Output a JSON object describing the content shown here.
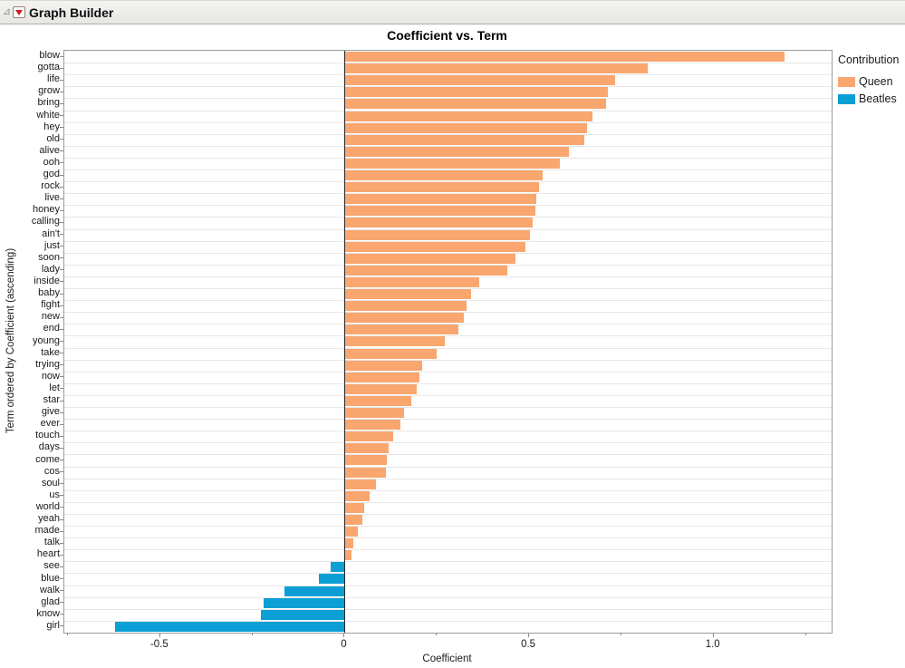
{
  "window": {
    "header_title": "Graph Builder"
  },
  "legend": {
    "title": "Contribution",
    "position": "right",
    "items": [
      {
        "label": "Queen",
        "color": "#F9A66F"
      },
      {
        "label": "Beatles",
        "color": "#0C9FD6"
      }
    ]
  },
  "chart_data": {
    "type": "bar",
    "orientation": "horizontal",
    "title": "Coefficient vs. Term",
    "xlabel": "Coefficient",
    "ylabel": "Term ordered by Coefficient (ascending)",
    "xlim": [
      -0.76,
      1.32
    ],
    "x_major_ticks": [
      -0.5,
      0,
      0.5,
      1.0
    ],
    "x_major_tick_labels": [
      "-0.5",
      "0",
      "0.5",
      "1.0"
    ],
    "x_minor_tick_step": 0.25,
    "grid": "horizontal-row-lines",
    "legend_position": "right",
    "bars": [
      {
        "term": "blow",
        "value": 1.19,
        "group": "Queen"
      },
      {
        "term": "gotta",
        "value": 0.82,
        "group": "Queen"
      },
      {
        "term": "life",
        "value": 0.73,
        "group": "Queen"
      },
      {
        "term": "grow",
        "value": 0.71,
        "group": "Queen"
      },
      {
        "term": "bring",
        "value": 0.705,
        "group": "Queen"
      },
      {
        "term": "white",
        "value": 0.67,
        "group": "Queen"
      },
      {
        "term": "hey",
        "value": 0.655,
        "group": "Queen"
      },
      {
        "term": "old",
        "value": 0.648,
        "group": "Queen"
      },
      {
        "term": "alive",
        "value": 0.605,
        "group": "Queen"
      },
      {
        "term": "ooh",
        "value": 0.58,
        "group": "Queen"
      },
      {
        "term": "god",
        "value": 0.535,
        "group": "Queen"
      },
      {
        "term": "rock",
        "value": 0.524,
        "group": "Queen"
      },
      {
        "term": "live",
        "value": 0.518,
        "group": "Queen"
      },
      {
        "term": "honey",
        "value": 0.514,
        "group": "Queen"
      },
      {
        "term": "calling",
        "value": 0.507,
        "group": "Queen"
      },
      {
        "term": "ain't",
        "value": 0.5,
        "group": "Queen"
      },
      {
        "term": "just",
        "value": 0.488,
        "group": "Queen"
      },
      {
        "term": "soon",
        "value": 0.46,
        "group": "Queen"
      },
      {
        "term": "lady",
        "value": 0.438,
        "group": "Queen"
      },
      {
        "term": "inside",
        "value": 0.362,
        "group": "Queen"
      },
      {
        "term": "baby",
        "value": 0.34,
        "group": "Queen"
      },
      {
        "term": "fight",
        "value": 0.327,
        "group": "Queen"
      },
      {
        "term": "new",
        "value": 0.32,
        "group": "Queen"
      },
      {
        "term": "end",
        "value": 0.307,
        "group": "Queen"
      },
      {
        "term": "young",
        "value": 0.27,
        "group": "Queen"
      },
      {
        "term": "take",
        "value": 0.246,
        "group": "Queen"
      },
      {
        "term": "trying",
        "value": 0.207,
        "group": "Queen"
      },
      {
        "term": "now",
        "value": 0.2,
        "group": "Queen"
      },
      {
        "term": "let",
        "value": 0.192,
        "group": "Queen"
      },
      {
        "term": "star",
        "value": 0.177,
        "group": "Queen"
      },
      {
        "term": "give",
        "value": 0.159,
        "group": "Queen"
      },
      {
        "term": "ever",
        "value": 0.149,
        "group": "Queen"
      },
      {
        "term": "touch",
        "value": 0.13,
        "group": "Queen"
      },
      {
        "term": "days",
        "value": 0.117,
        "group": "Queen"
      },
      {
        "term": "come",
        "value": 0.112,
        "group": "Queen"
      },
      {
        "term": "cos",
        "value": 0.11,
        "group": "Queen"
      },
      {
        "term": "soul",
        "value": 0.083,
        "group": "Queen"
      },
      {
        "term": "us",
        "value": 0.066,
        "group": "Queen"
      },
      {
        "term": "world",
        "value": 0.05,
        "group": "Queen"
      },
      {
        "term": "yeah",
        "value": 0.045,
        "group": "Queen"
      },
      {
        "term": "made",
        "value": 0.034,
        "group": "Queen"
      },
      {
        "term": "talk",
        "value": 0.021,
        "group": "Queen"
      },
      {
        "term": "heart",
        "value": 0.015,
        "group": "Queen"
      },
      {
        "term": "see",
        "value": -0.037,
        "group": "Beatles"
      },
      {
        "term": "blue",
        "value": -0.069,
        "group": "Beatles"
      },
      {
        "term": "walk",
        "value": -0.163,
        "group": "Beatles"
      },
      {
        "term": "glad",
        "value": -0.22,
        "group": "Beatles"
      },
      {
        "term": "know",
        "value": -0.226,
        "group": "Beatles"
      },
      {
        "term": "girl",
        "value": -0.623,
        "group": "Beatles"
      }
    ]
  },
  "colors": {
    "queen_bar": "#F9A66F",
    "beatles_bar": "#0C9FD6",
    "gridline": "#E7E7E7",
    "plot_border": "#9C9C9C",
    "zero_line": "#2A2A2A",
    "red_triangle": "#CF1D1D"
  }
}
